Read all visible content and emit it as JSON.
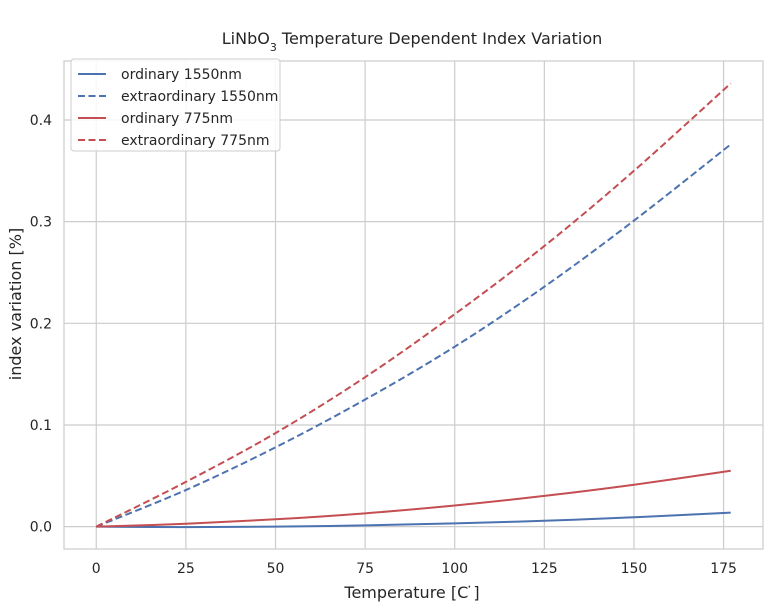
{
  "chart_data": {
    "type": "line",
    "title": "LiNbO",
    "title_sub": "3",
    "title_rest": " Temperature Dependent Index Variation",
    "xlabel": "Temperature [C ̇]",
    "ylabel": "index variation [%]",
    "xlim": [
      -9,
      186
    ],
    "ylim": [
      -0.022,
      0.458
    ],
    "xticks": [
      0,
      25,
      50,
      75,
      100,
      125,
      150,
      175
    ],
    "xtick_labels": [
      "0",
      "25",
      "50",
      "75",
      "100",
      "125",
      "150",
      "175"
    ],
    "yticks": [
      0.0,
      0.1,
      0.2,
      0.3,
      0.4
    ],
    "ytick_labels": [
      "0.0",
      "0.1",
      "0.2",
      "0.3",
      "0.4"
    ],
    "grid": true,
    "legend_position": "top-left",
    "x": [
      0,
      25,
      50,
      75,
      100,
      125,
      150,
      177
    ],
    "series": [
      {
        "name": "ordinary 1550nm",
        "color": "#4c72b0",
        "dash": "solid",
        "values": [
          0.0,
          -0.0005,
          0.0,
          0.0012,
          0.0032,
          0.0058,
          0.0092,
          0.0138
        ]
      },
      {
        "name": "extraordinary 1550nm",
        "color": "#4c72b0",
        "dash": "dashed",
        "values": [
          0.0,
          0.036,
          0.078,
          0.125,
          0.177,
          0.236,
          0.301,
          0.376
        ]
      },
      {
        "name": "ordinary 775nm",
        "color": "#c44e52",
        "dash": "solid",
        "values": [
          0.0,
          0.0028,
          0.0072,
          0.0131,
          0.0208,
          0.0302,
          0.0412,
          0.055
        ]
      },
      {
        "name": "extraordinary 775nm",
        "color": "#c44e52",
        "dash": "dashed",
        "values": [
          0.0,
          0.044,
          0.092,
          0.147,
          0.209,
          0.276,
          0.35,
          0.436
        ]
      }
    ]
  }
}
